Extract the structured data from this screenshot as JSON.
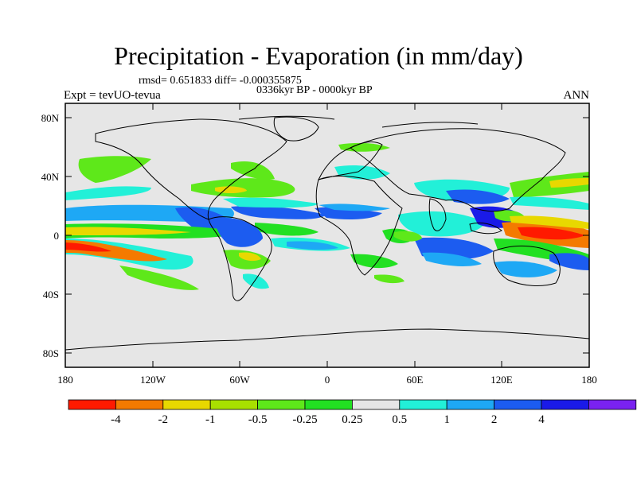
{
  "title": "Precipitation - Evaporation (in mm/day)",
  "stats_line": "rmsd= 0.651833 diff= -0.000355875",
  "period": "0336kyr BP - 0000kyr BP",
  "experiment": "Expt = tevUO-tevua",
  "season": "ANN",
  "lat_labels": [
    "80N",
    "40N",
    "0",
    "40S",
    "80S"
  ],
  "lon_labels": [
    "180",
    "120W",
    "60W",
    "0",
    "60E",
    "120E",
    "180"
  ],
  "colorbar": {
    "labels": [
      "-4",
      "-2",
      "-1",
      "-0.5",
      "-0.25",
      "0.25",
      "0.5",
      "1",
      "2",
      "4"
    ],
    "colors": [
      "#ff1a00",
      "#f47a00",
      "#e8d800",
      "#a8e000",
      "#5ee81a",
      "#22e022",
      "#e6e6e6",
      "#22f0d8",
      "#1ea8f5",
      "#1c5cf0",
      "#1a1ae8",
      "#7a22f0"
    ]
  }
}
